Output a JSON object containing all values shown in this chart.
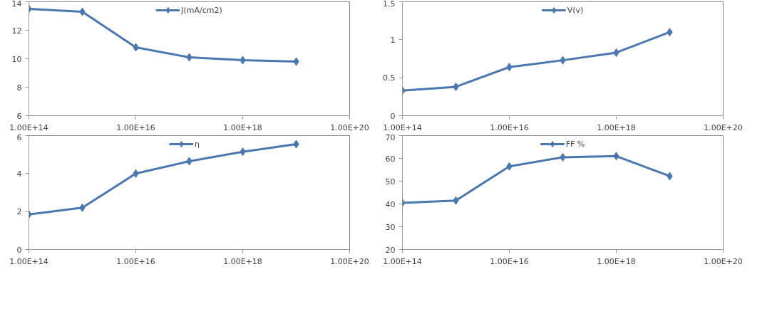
{
  "chart_data": [
    {
      "type": "line",
      "x": [
        100000000000000.0,
        1000000000000000.0,
        1e+16,
        1e+17,
        1e+18,
        1e+19
      ],
      "series": [
        {
          "name": "J(mA/cm2)",
          "color": "#4a77ae",
          "values": [
            13.5,
            13.3,
            10.8,
            10.1,
            9.9,
            9.8
          ]
        }
      ],
      "log": "x",
      "xlim": [
        100000000000000.0,
        1e+20
      ],
      "xticks": [
        {
          "value": 100000000000000.0,
          "label": "1.00E+14"
        },
        {
          "value": 1e+16,
          "label": "1.00E+16"
        },
        {
          "value": 1e+18,
          "label": "1.00E+18"
        },
        {
          "value": 1e+20,
          "label": "1.00E+20"
        }
      ],
      "ylim": [
        6,
        14
      ],
      "yticks": [
        6,
        8,
        10,
        12,
        14
      ],
      "marker": "diamond",
      "legend": "top",
      "grid": false
    },
    {
      "type": "line",
      "x": [
        100000000000000.0,
        1000000000000000.0,
        1e+16,
        1e+17,
        1e+18,
        1e+19
      ],
      "series": [
        {
          "name": "V(v)",
          "color": "#4a77ae",
          "values": [
            0.33,
            0.38,
            0.64,
            0.73,
            0.83,
            1.1
          ]
        }
      ],
      "log": "x",
      "xlim": [
        100000000000000.0,
        1e+20
      ],
      "xticks": [
        {
          "value": 100000000000000.0,
          "label": "1.00E+14"
        },
        {
          "value": 1e+16,
          "label": "1.00E+16"
        },
        {
          "value": 1e+18,
          "label": "1.00E+18"
        },
        {
          "value": 1e+20,
          "label": "1.00E+20"
        }
      ],
      "ylim": [
        0,
        1.5
      ],
      "yticks": [
        0,
        0.5,
        1,
        1.5
      ],
      "marker": "diamond",
      "legend": "top",
      "grid": false
    },
    {
      "type": "line",
      "x": [
        100000000000000.0,
        1000000000000000.0,
        1e+16,
        1e+17,
        1e+18,
        1e+19
      ],
      "series": [
        {
          "name": "η",
          "color": "#4a77ae",
          "values": [
            1.85,
            2.2,
            4.0,
            4.65,
            5.15,
            5.55
          ]
        }
      ],
      "log": "x",
      "xlim": [
        100000000000000.0,
        1e+20
      ],
      "xticks": [
        {
          "value": 100000000000000.0,
          "label": "1.00E+14"
        },
        {
          "value": 1e+16,
          "label": "1.00E+16"
        },
        {
          "value": 1e+18,
          "label": "1.00E+18"
        },
        {
          "value": 1e+20,
          "label": "1.00E+20"
        }
      ],
      "ylim": [
        0,
        6
      ],
      "yticks": [
        0,
        2,
        4,
        6
      ],
      "marker": "diamond",
      "legend": "top",
      "grid": false
    },
    {
      "type": "line",
      "x": [
        100000000000000.0,
        1000000000000000.0,
        1e+16,
        1e+17,
        1e+18,
        1e+19
      ],
      "series": [
        {
          "name": "FF %",
          "color": "#4a77ae",
          "values": [
            40.5,
            41.5,
            56.5,
            60.5,
            61,
            52.2
          ]
        }
      ],
      "log": "x",
      "xlim": [
        100000000000000.0,
        1e+20
      ],
      "xticks": [
        {
          "value": 100000000000000.0,
          "label": "1.00E+14"
        },
        {
          "value": 1e+16,
          "label": "1.00E+16"
        },
        {
          "value": 1e+18,
          "label": "1.00E+18"
        },
        {
          "value": 1e+20,
          "label": "1.00E+20"
        }
      ],
      "ylim": [
        20,
        70
      ],
      "yticks": [
        20,
        30,
        40,
        50,
        60,
        70
      ],
      "marker": "diamond",
      "legend": "top",
      "grid": false
    }
  ]
}
